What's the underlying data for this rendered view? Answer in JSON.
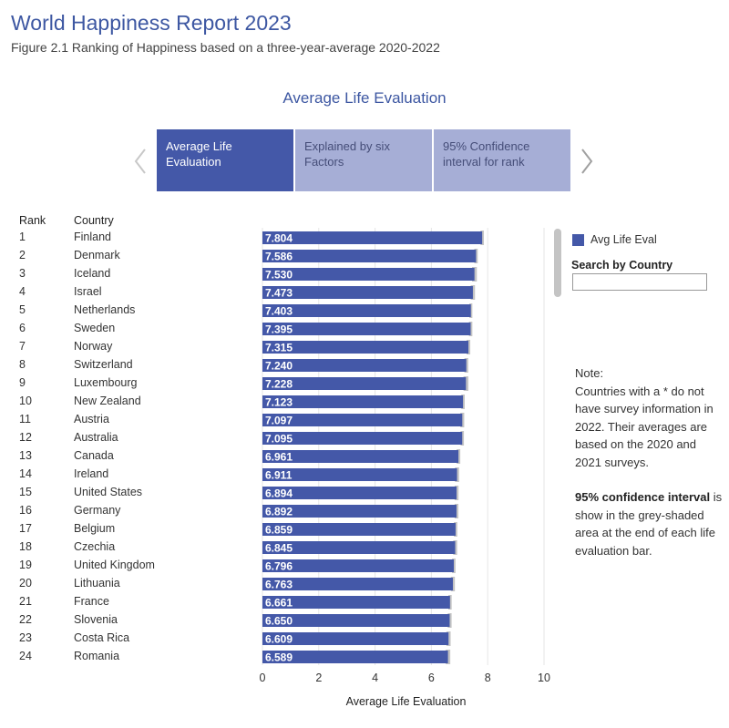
{
  "header": {
    "title": "World Happiness Report 2023",
    "subtitle": "Figure 2.1 Ranking of Happiness based on a three-year-average 2020-2022"
  },
  "section_title": "Average Life Evaluation",
  "tabs": [
    {
      "label": "Average Life Evaluation"
    },
    {
      "label": "Explained by six Factors"
    },
    {
      "label": "95% Confidence interval for rank"
    }
  ],
  "table": {
    "rank_header": "Rank",
    "country_header": "Country"
  },
  "legend": {
    "label": "Avg Life Eval"
  },
  "search": {
    "label": "Search by Country",
    "value": ""
  },
  "note": {
    "title": "Note:",
    "text": "Countries with a * do not have survey information in 2022. Their averages are based on the 2020 and 2021 surveys.",
    "ci_bold": "95% confidence interval",
    "ci_text": "is show in the grey-shaded area at the end of each life evaluation bar."
  },
  "colors": {
    "bar": "#4458a8",
    "ci": "#c0c0c0",
    "accent": "#3d57a2"
  },
  "chart_data": {
    "type": "bar",
    "orientation": "horizontal",
    "categories": [
      "Finland",
      "Denmark",
      "Iceland",
      "Israel",
      "Netherlands",
      "Sweden",
      "Norway",
      "Switzerland",
      "Luxembourg",
      "New Zealand",
      "Austria",
      "Australia",
      "Canada",
      "Ireland",
      "United States",
      "Germany",
      "Belgium",
      "Czechia",
      "United Kingdom",
      "Lithuania",
      "France",
      "Slovenia",
      "Costa Rica",
      "Romania"
    ],
    "ranks": [
      1,
      2,
      3,
      4,
      5,
      6,
      7,
      8,
      9,
      10,
      11,
      12,
      13,
      14,
      15,
      16,
      17,
      18,
      19,
      20,
      21,
      22,
      23,
      24
    ],
    "values": [
      7.804,
      7.586,
      7.53,
      7.473,
      7.403,
      7.395,
      7.315,
      7.24,
      7.228,
      7.123,
      7.097,
      7.095,
      6.961,
      6.911,
      6.894,
      6.892,
      6.859,
      6.845,
      6.796,
      6.763,
      6.661,
      6.65,
      6.609,
      6.589
    ],
    "value_labels": [
      "7.804",
      "7.586",
      "7.530",
      "7.473",
      "7.403",
      "7.395",
      "7.315",
      "7.240",
      "7.228",
      "7.123",
      "7.097",
      "7.095",
      "6.961",
      "6.911",
      "6.894",
      "6.892",
      "6.859",
      "6.845",
      "6.796",
      "6.763",
      "6.661",
      "6.650",
      "6.609",
      "6.589"
    ],
    "ci_lower": [
      7.744,
      7.525,
      7.444,
      7.397,
      7.351,
      7.335,
      7.25,
      7.172,
      7.141,
      7.062,
      7.027,
      7.036,
      6.896,
      6.837,
      6.824,
      6.824,
      6.799,
      6.776,
      6.734,
      6.693,
      6.603,
      6.582,
      6.534,
      6.507
    ],
    "ci_upper": [
      7.865,
      7.647,
      7.615,
      7.548,
      7.455,
      7.455,
      7.38,
      7.308,
      7.315,
      7.184,
      7.166,
      7.155,
      7.026,
      6.985,
      6.964,
      6.96,
      6.919,
      6.914,
      6.858,
      6.833,
      6.72,
      6.718,
      6.684,
      6.671
    ],
    "xlim": [
      0,
      10
    ],
    "xticks": [
      0,
      2,
      4,
      6,
      8,
      10
    ],
    "tick_labels": [
      "0",
      "2",
      "4",
      "6",
      "8",
      "10"
    ],
    "xlabel": "Average Life Evaluation",
    "grid": true
  }
}
